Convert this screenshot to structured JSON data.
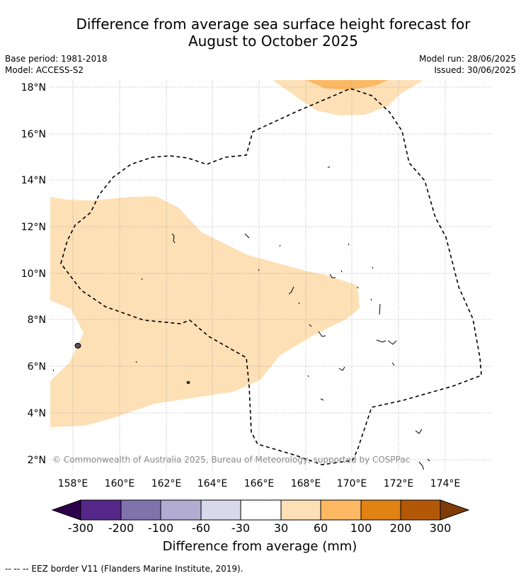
{
  "title_line1": "Difference from average sea surface height forecast for",
  "title_line2": "August to October 2025",
  "meta": {
    "base_period": "Base period: 1981-2018",
    "model": "Model: ACCESS-S2",
    "model_run": "Model run: 28/06/2025",
    "issued": "Issued: 30/06/2025"
  },
  "map": {
    "lat_ticks": [
      "18°N",
      "16°N",
      "14°N",
      "12°N",
      "10°N",
      "8°N",
      "6°N",
      "4°N",
      "2°N"
    ],
    "lon_ticks": [
      "158°E",
      "160°E",
      "162°E",
      "164°E",
      "166°E",
      "168°E",
      "170°E",
      "172°E",
      "174°E"
    ],
    "copyright": "© Commonwealth of Australia 2025, Bureau of Meteorology, supported by COSPPac"
  },
  "colorbar": {
    "title": "Difference from average (mm)",
    "tick_labels": [
      "-300",
      "-200",
      "-100",
      "-60",
      "-30",
      "30",
      "60",
      "100",
      "200",
      "300"
    ],
    "colors": [
      "#2d004b",
      "#542788",
      "#8073ac",
      "#b2abd2",
      "#d8daeb",
      "#ffffff",
      "#fee0b6",
      "#fdb863",
      "#e08214",
      "#b35806",
      "#7f3b08"
    ]
  },
  "footnote": "--  --  -- EEZ border V11 (Flanders Marine Institute, 2019)."
}
